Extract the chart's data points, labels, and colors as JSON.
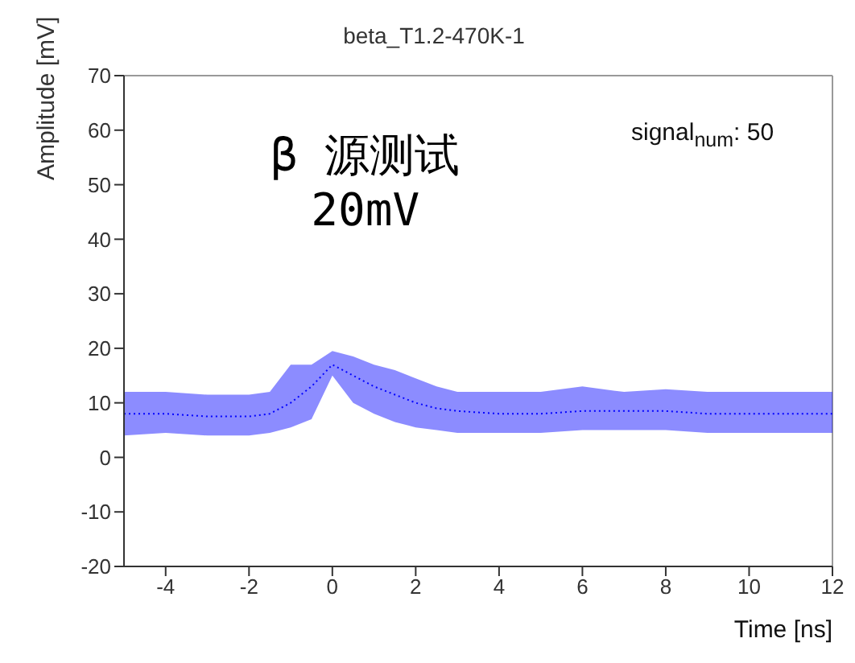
{
  "chart_data": {
    "type": "line",
    "title": "beta_T1.2-470K-1",
    "xlabel": "Time [ns]",
    "ylabel": "Amplitude [mV]",
    "annotations": [
      "β 源测试\n20mV",
      "signal$_{num}$: 50"
    ],
    "x": [
      -5,
      -4,
      -3,
      -2,
      -1.5,
      -1,
      -0.5,
      0,
      0.5,
      1,
      1.5,
      2,
      2.5,
      3,
      4,
      5,
      6,
      7,
      8,
      9,
      10,
      11,
      12
    ],
    "series": [
      {
        "color": "#0000ff",
        "values": [
          8,
          8,
          7.5,
          7.5,
          8,
          10,
          13,
          17,
          15,
          13,
          11.5,
          10,
          9,
          8.5,
          8,
          8,
          8.5,
          8.5,
          8.5,
          8,
          8,
          8,
          8
        ],
        "lower": [
          4,
          4.5,
          4,
          4,
          4.5,
          5.5,
          7,
          15,
          10,
          8,
          6.5,
          5.5,
          5,
          4.5,
          4.5,
          4.5,
          5,
          5,
          5,
          4.5,
          4.5,
          4.5,
          4.5
        ],
        "upper": [
          12,
          12,
          11.5,
          11.5,
          12,
          17,
          17,
          19.5,
          18.5,
          17,
          16,
          14.5,
          13,
          12,
          12,
          12,
          13,
          12,
          12.5,
          12,
          12,
          12,
          12
        ]
      }
    ],
    "xlim": [
      -5,
      12
    ],
    "xticks": [
      -4,
      -2,
      0,
      2,
      4,
      6,
      8,
      10,
      12
    ],
    "ylim": [
      -20,
      70
    ],
    "yticks": [
      -20,
      -10,
      0,
      10,
      20,
      30,
      40,
      50,
      60,
      70
    ],
    "grid": false,
    "marker": "none",
    "line_style": "dotted"
  }
}
